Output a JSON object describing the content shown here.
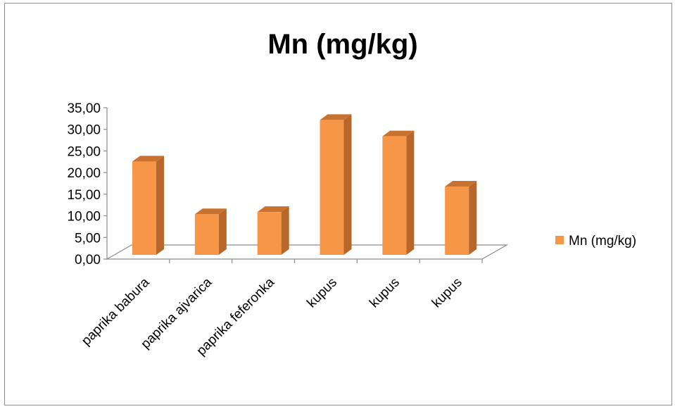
{
  "chart_data": {
    "type": "bar",
    "title": "Mn  (mg/kg)",
    "categories": [
      "paprika babura",
      "paprika ajvarica",
      "paprika feferonka",
      "kupus",
      "kupus",
      "kupus"
    ],
    "series": [
      {
        "name": "Mn  (mg/kg)",
        "values": [
          21.6,
          9.4,
          9.9,
          31.2,
          27.4,
          15.8
        ]
      }
    ],
    "yticks": [
      "0,00",
      "5,00",
      "10,00",
      "15,00",
      "20,00",
      "25,00",
      "30,00",
      "35,00"
    ],
    "ylim": [
      0,
      35
    ],
    "legend_position": "right",
    "grid": false,
    "colors": {
      "bar_front": "#f79646",
      "bar_side": "#b8672a",
      "bar_top": "#c9712e"
    }
  }
}
